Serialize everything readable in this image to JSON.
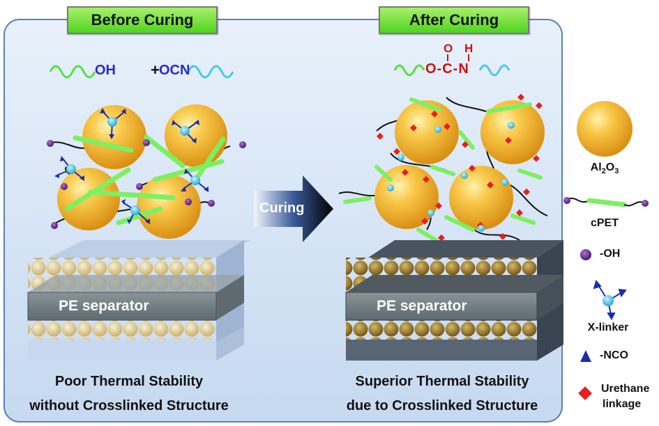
{
  "headers": {
    "before": "Before Curing",
    "after": "After Curing"
  },
  "reaction": {
    "left_oh": "OH",
    "plus": "+",
    "ocn": "OCN",
    "urethane_o_top": "O",
    "urethane_h_top": "H",
    "urethane_chain": "O-C-N"
  },
  "arrow_label": "Curing",
  "separator_label": "PE separator",
  "captions": {
    "before_line1": "Poor Thermal Stability",
    "before_line2": "without Crosslinked Structure",
    "after_line1": "Superior Thermal Stability",
    "after_line2": "due to Crosslinked Structure"
  },
  "legend": {
    "alumina": "Al",
    "alumina_sub2": "2",
    "alumina_o": "O",
    "alumina_sub3": "3",
    "cpet": "cPET",
    "oh": "-OH",
    "xlinker": "X-linker",
    "nco": "-NCO",
    "urethane_line1": "Urethane",
    "urethane_line2": "linkage"
  },
  "colors": {
    "panel": "#cfe0f4",
    "particle": "#f2b233",
    "fiber": "#7cf060",
    "hydroxyl": "#6b2d8f",
    "isocyanate": "#1b2ea8",
    "urethane": "#e81e1e",
    "linker": "#3fc8e8"
  }
}
